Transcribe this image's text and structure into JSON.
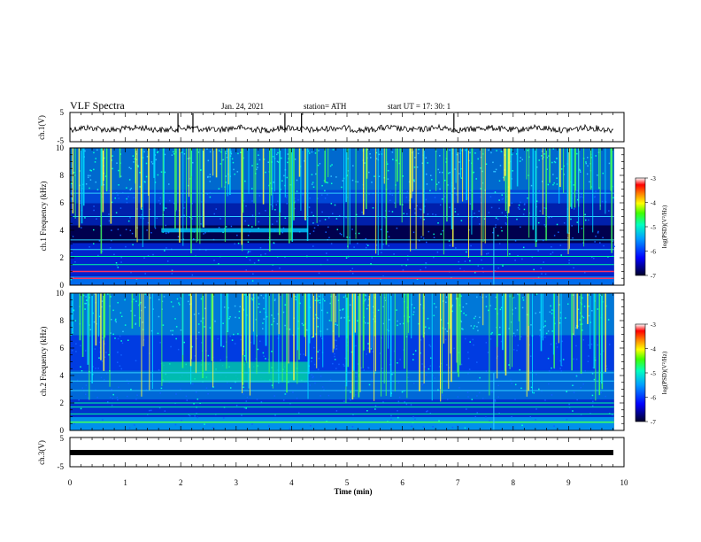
{
  "header": {
    "title": "VLF Spectra",
    "date": "Jan. 24, 2021",
    "station": "station= ATH",
    "start": "start  UT  =    17: 30: 1"
  },
  "colorbar": {
    "label": "log(PSD)(V²/Hz)",
    "ticks": [
      "-3",
      "-4",
      "-5",
      "-6",
      "-7"
    ]
  },
  "colors": {
    "background": "#00003a",
    "low": "#0014ff",
    "mid": "#00ffc8",
    "high": "#ffff00",
    "peak": "#ff0000"
  },
  "chart_data": [
    {
      "id": "ch1-waveform",
      "type": "line",
      "ylabel": "ch.1(V)",
      "ylim": [
        -5,
        5
      ],
      "yticks": [
        "5",
        "-5"
      ],
      "xlim": [
        0,
        10
      ],
      "description_units": "Volts vs minutes",
      "baseline": 0,
      "spikes_min": [
        1.95,
        2.22,
        3.88,
        4.18,
        6.93
      ]
    },
    {
      "id": "ch1-spectrogram",
      "type": "heatmap",
      "ylabel": "ch.1  Frequency  (kHz)",
      "ylim": [
        0,
        10
      ],
      "yticks": [
        "10",
        "8",
        "6",
        "4",
        "2",
        "0"
      ],
      "xlim": [
        0,
        10
      ],
      "data_end_min": 9.82,
      "clim": [
        -7,
        -3
      ],
      "features": {
        "band_4khz_min": [
          1.65,
          4.3
        ],
        "lines_khz": [
          6.7,
          5.0,
          3.3,
          2.6,
          2.1,
          1.5,
          1.0,
          0.5
        ],
        "vertical_marker_min": 7.65
      }
    },
    {
      "id": "ch2-spectrogram",
      "type": "heatmap",
      "ylabel": "ch.2  Frequency  (kHz)",
      "ylim": [
        0,
        10
      ],
      "yticks": [
        "10",
        "8",
        "6",
        "4",
        "2",
        "0"
      ],
      "xlim": [
        0,
        10
      ],
      "data_end_min": 9.82,
      "clim": [
        -7,
        -3
      ],
      "features": {
        "band_4khz_min": [
          1.65,
          4.3
        ],
        "lines_khz": [
          4.2,
          3.6,
          2.9,
          2.0,
          1.7,
          1.2,
          0.6
        ],
        "vertical_marker_min": 7.65
      }
    },
    {
      "id": "ch3-waveform",
      "type": "line",
      "ylabel": "ch.3(V)",
      "ylim": [
        -5,
        5
      ],
      "yticks": [
        "5",
        "-5"
      ],
      "xlim": [
        0,
        10
      ],
      "baseline": 0,
      "xlabel": "Time  (min)",
      "xticks": [
        "0",
        "1",
        "2",
        "3",
        "4",
        "5",
        "6",
        "7",
        "8",
        "9",
        "10"
      ]
    }
  ]
}
